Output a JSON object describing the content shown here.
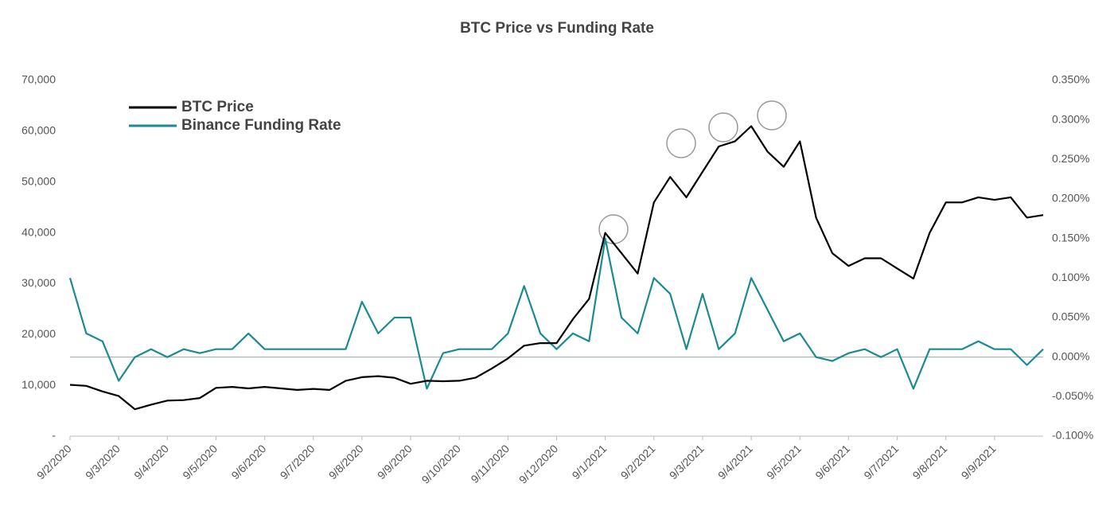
{
  "chart_data": {
    "type": "line",
    "title": "BTC Price vs Funding Rate",
    "categories": [
      "9/2/2020",
      null,
      null,
      "9/3/2020",
      null,
      null,
      "9/4/2020",
      null,
      null,
      "9/5/2020",
      null,
      null,
      "9/6/2020",
      null,
      null,
      "9/7/2020",
      null,
      null,
      "9/8/2020",
      null,
      null,
      "9/9/2020",
      null,
      null,
      "9/10/2020",
      null,
      null,
      "9/11/2020",
      null,
      null,
      "9/12/2020",
      null,
      null,
      "9/1/2021",
      null,
      null,
      "9/2/2021",
      null,
      null,
      "9/3/2021",
      null,
      null,
      "9/4/2021",
      null,
      null,
      "9/5/2021",
      null,
      null,
      "9/6/2021",
      null,
      null,
      "9/7/2021",
      null,
      null,
      "9/8/2021",
      null,
      null,
      "9/9/2021",
      null,
      null,
      null
    ],
    "series": [
      {
        "name": "BTC Price",
        "color": "#000000",
        "values": [
          10100,
          9900,
          8800,
          7900,
          5300,
          6200,
          7000,
          7100,
          7500,
          9500,
          9700,
          9400,
          9700,
          9400,
          9100,
          9300,
          9100,
          10900,
          11600,
          11800,
          11500,
          10300,
          10900,
          10800,
          10900,
          11500,
          13300,
          15300,
          17800,
          18300,
          18300,
          23000,
          27000,
          40000,
          36000,
          32000,
          46000,
          51000,
          47000,
          52000,
          57000,
          58000,
          61000,
          56000,
          53000,
          58000,
          43000,
          36000,
          33500,
          35000,
          35000,
          33000,
          31000,
          40000,
          46000,
          46000,
          47000,
          46500,
          47000,
          43000,
          43500
        ]
      },
      {
        "name": "Binance Funding Rate",
        "color": "#1a8a93",
        "axis": "y2",
        "values": [
          0.1,
          0.03,
          0.02,
          -0.03,
          0.0,
          0.01,
          0.0,
          0.01,
          0.005,
          0.01,
          0.01,
          0.03,
          0.01,
          0.01,
          0.01,
          0.01,
          0.01,
          0.01,
          0.07,
          0.03,
          0.05,
          0.05,
          -0.04,
          0.005,
          0.01,
          0.01,
          0.01,
          0.03,
          0.09,
          0.03,
          0.01,
          0.03,
          0.02,
          0.15,
          0.05,
          0.03,
          0.1,
          0.08,
          0.01,
          0.08,
          0.01,
          0.03,
          0.1,
          0.06,
          0.02,
          0.03,
          0.0,
          -0.005,
          0.005,
          0.01,
          0.0,
          0.01,
          -0.04,
          0.01,
          0.01,
          0.01,
          0.02,
          0.01,
          0.01,
          -0.01,
          0.01
        ]
      }
    ],
    "ylim": [
      0,
      70000
    ],
    "yticks": [
      {
        "value": 0,
        "label": "-"
      },
      {
        "value": 10000,
        "label": "10,000"
      },
      {
        "value": 20000,
        "label": "20,000"
      },
      {
        "value": 30000,
        "label": "30,000"
      },
      {
        "value": 40000,
        "label": "40,000"
      },
      {
        "value": 50000,
        "label": "50,000"
      },
      {
        "value": 60000,
        "label": "60,000"
      },
      {
        "value": 70000,
        "label": "70,000"
      }
    ],
    "y2lim": [
      -0.1,
      0.35
    ],
    "y2ticks": [
      {
        "value": -0.1,
        "label": "-0.100%"
      },
      {
        "value": -0.05,
        "label": "-0.050%"
      },
      {
        "value": 0,
        "label": "0.000%"
      },
      {
        "value": 0.05,
        "label": "0.050%"
      },
      {
        "value": 0.1,
        "label": "0.100%"
      },
      {
        "value": 0.15,
        "label": "0.150%"
      },
      {
        "value": 0.2,
        "label": "0.200%"
      },
      {
        "value": 0.25,
        "label": "0.250%"
      },
      {
        "value": 0.3,
        "label": "0.300%"
      },
      {
        "value": 0.35,
        "label": "0.350%"
      }
    ],
    "legend": "upper-left"
  }
}
